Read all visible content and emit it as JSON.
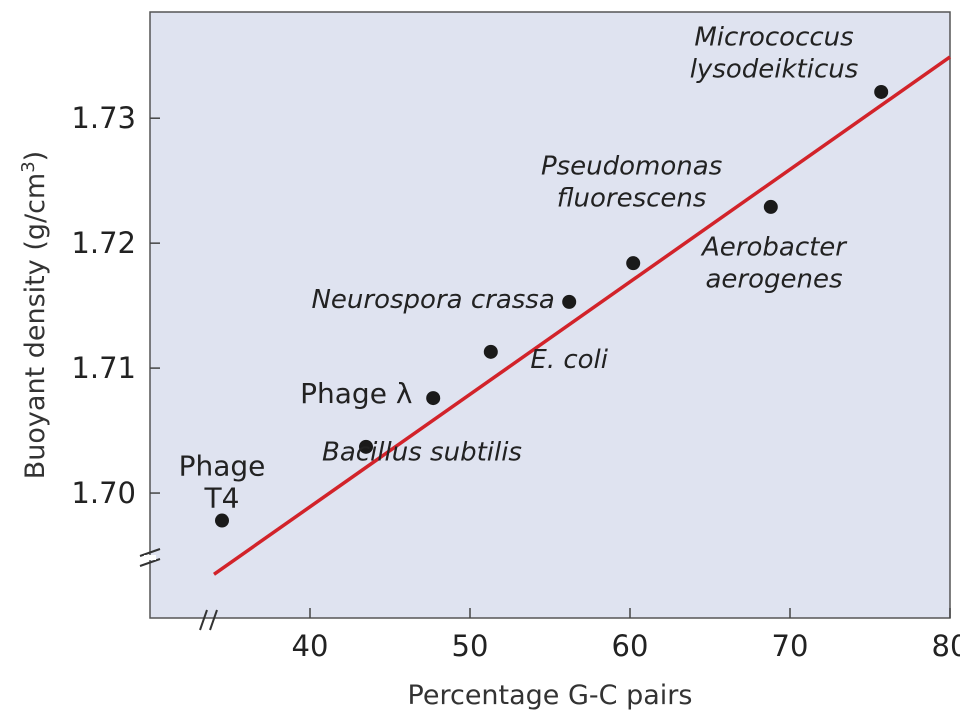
{
  "chart_data": {
    "type": "scatter",
    "title": "",
    "xlabel": "Percentage G-C pairs",
    "ylabel_main": "Buoyant density (g/cm",
    "ylabel_sup": "3",
    "ylabel_close": ")",
    "xlim": [
      30,
      80
    ],
    "ylim": [
      1.69,
      1.7385
    ],
    "xticks": [
      {
        "value": 40,
        "label": "40"
      },
      {
        "value": 50,
        "label": "50"
      },
      {
        "value": 60,
        "label": "60"
      },
      {
        "value": 70,
        "label": "70"
      },
      {
        "value": 80,
        "label": "80"
      }
    ],
    "yticks": [
      {
        "value": 1.7,
        "label": "1.70"
      },
      {
        "value": 1.71,
        "label": "1.71"
      },
      {
        "value": 1.72,
        "label": "1.72"
      },
      {
        "value": 1.73,
        "label": "1.73"
      }
    ],
    "axis_breaks": true,
    "background_color": "#dfe3f0",
    "point_color": "#1a1a1a",
    "fit_line_color": "#d2232a",
    "fit_line": {
      "x": [
        34,
        80
      ],
      "y": [
        1.6935,
        1.7349
      ]
    },
    "points": [
      {
        "name": "phage-t4",
        "x": 34.5,
        "y": 1.6978
      },
      {
        "name": "bacillus-subtilis",
        "x": 43.5,
        "y": 1.7037
      },
      {
        "name": "phage-lambda",
        "x": 47.7,
        "y": 1.7076
      },
      {
        "name": "e-coli",
        "x": 51.3,
        "y": 1.7113
      },
      {
        "name": "neurospora-crassa",
        "x": 56.2,
        "y": 1.7153
      },
      {
        "name": "pseudomonas-fluorescens",
        "x": 60.2,
        "y": 1.7184
      },
      {
        "name": "aerobacter-aerogenes",
        "x": 68.8,
        "y": 1.7229
      },
      {
        "name": "micrococcus-lysodeikticus",
        "x": 75.7,
        "y": 1.7321
      }
    ],
    "annotations": [
      {
        "name": "label-phage-t4",
        "lines": [
          "Phage",
          "T4"
        ],
        "italic": false,
        "x": 34.5,
        "y": 1.7014,
        "anchor": "middle"
      },
      {
        "name": "label-bacillus-subtilis",
        "lines": [
          "Bacillus subtilis"
        ],
        "italic": true,
        "x": 47.0,
        "y": 1.7026,
        "anchor": "middle"
      },
      {
        "name": "label-phage-lambda",
        "lines": [
          "Phage λ"
        ],
        "italic": false,
        "x": 46.4,
        "y": 1.7072,
        "anchor": "end"
      },
      {
        "name": "label-e-coli",
        "lines": [
          "E. coli"
        ],
        "italic": true,
        "x": 56.2,
        "y": 1.71,
        "anchor": "middle"
      },
      {
        "name": "label-neurospora-crassa",
        "lines": [
          "Neurospora crassa"
        ],
        "italic": true,
        "x": 55.3,
        "y": 1.7148,
        "anchor": "end"
      },
      {
        "name": "label-pseudomonas-fluorescens",
        "lines": [
          "Pseudomonas",
          "fluorescens"
        ],
        "italic": true,
        "x": 60.1,
        "y": 1.7255,
        "anchor": "middle"
      },
      {
        "name": "label-aerobacter-aerogenes",
        "lines": [
          "Aerobacter",
          "aerogenes"
        ],
        "italic": true,
        "x": 69.0,
        "y": 1.719,
        "anchor": "middle"
      },
      {
        "name": "label-micrococcus-lysodeikticus",
        "lines": [
          "Micrococcus",
          "lysodeikticus"
        ],
        "italic": true,
        "x": 69.0,
        "y": 1.7358,
        "anchor": "middle"
      }
    ]
  }
}
